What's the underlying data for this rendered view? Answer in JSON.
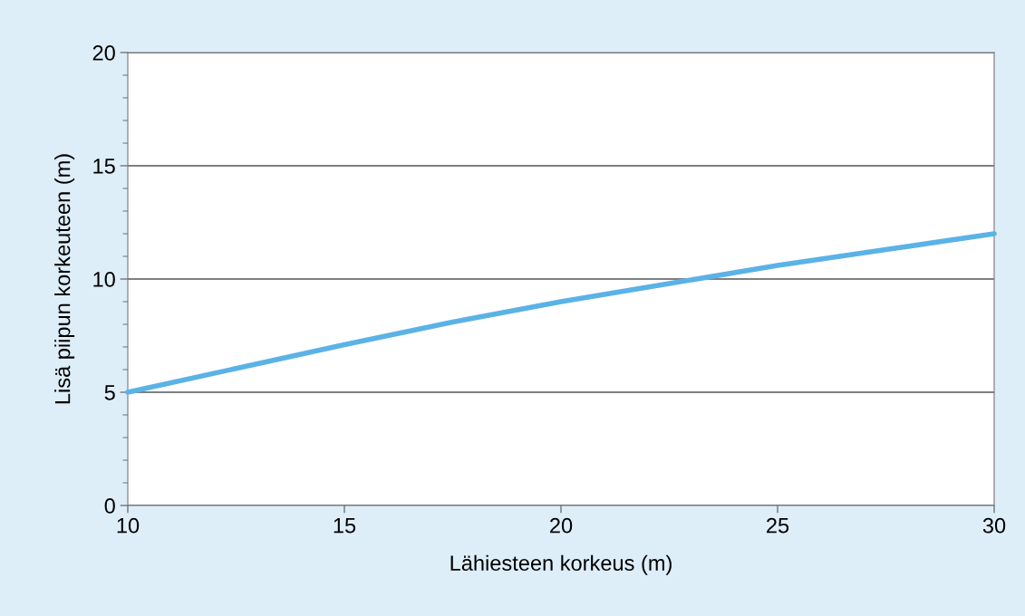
{
  "chart_data": {
    "type": "line",
    "xlabel": "Lähiesteen korkeus (m)",
    "ylabel": "Lisä piipun korkeuteen (m)",
    "x": [
      10,
      12.5,
      15,
      17.5,
      20,
      22.5,
      25,
      27.5,
      30
    ],
    "series": [
      {
        "color": "#5bb2e6",
        "values": [
          5,
          6.05,
          7.1,
          8.1,
          9.0,
          9.8,
          10.6,
          11.3,
          12.0
        ]
      }
    ],
    "xlim": [
      10,
      30
    ],
    "xticks": [
      10,
      15,
      20,
      25,
      30
    ],
    "ylim": [
      0,
      20
    ],
    "yticks": [
      0,
      5,
      10,
      15,
      20
    ],
    "grid": "y",
    "marker": "none",
    "line_style": "solid",
    "legend": false
  }
}
